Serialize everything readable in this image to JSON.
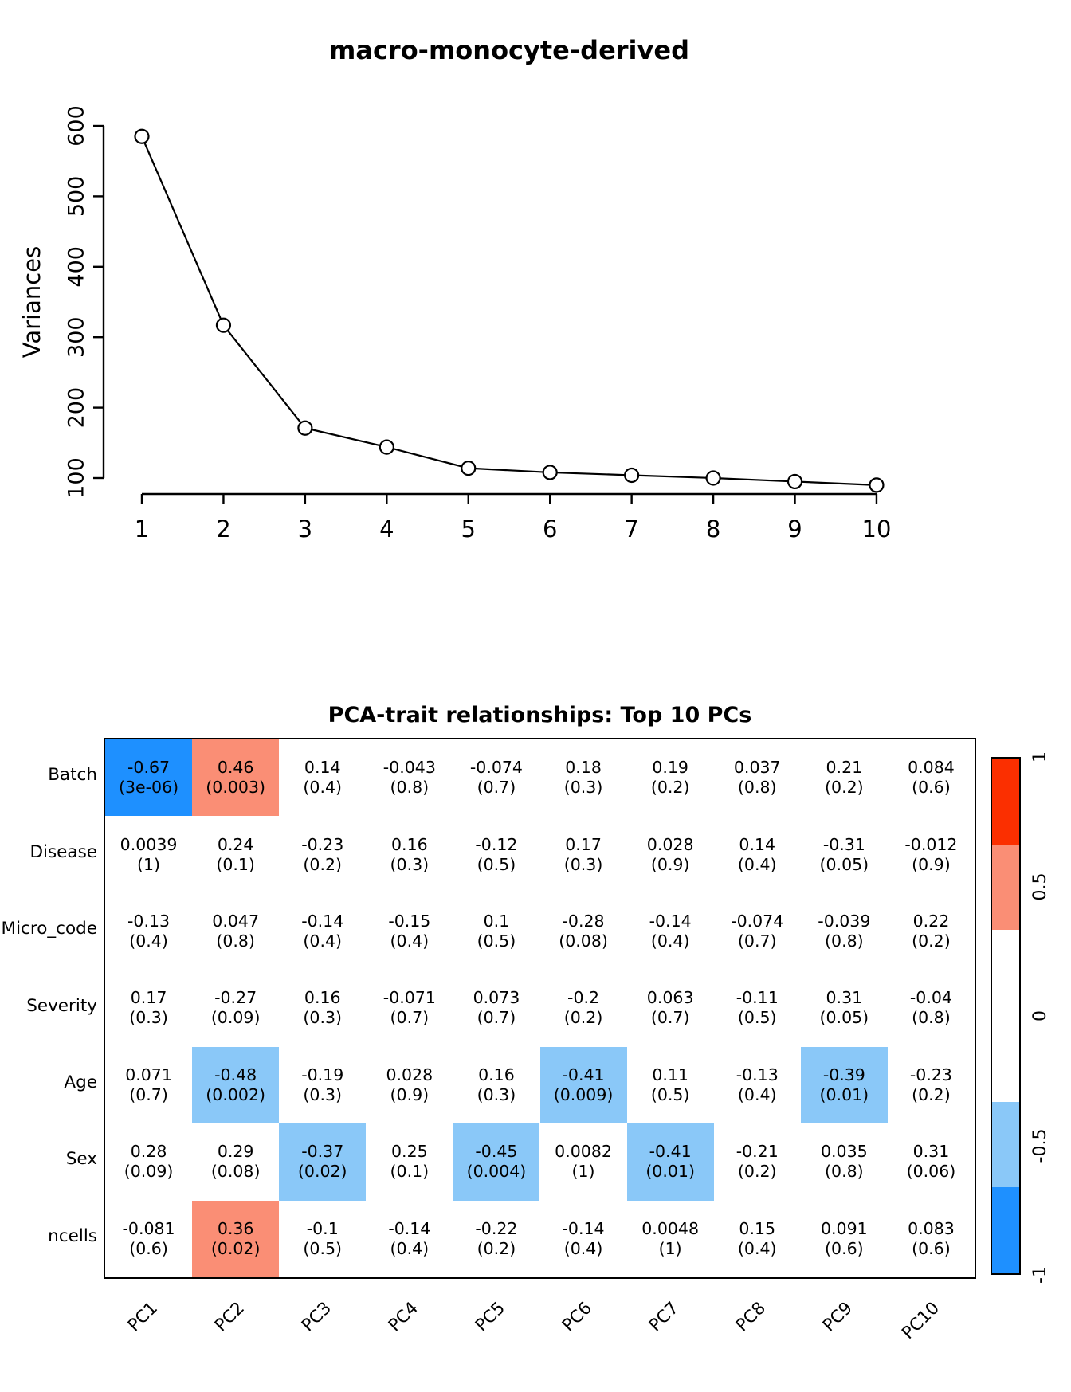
{
  "chart_data": [
    {
      "type": "line",
      "title": "macro-monocyte-derived",
      "xlabel": "",
      "ylabel": "Variances",
      "x": [
        1,
        2,
        3,
        4,
        5,
        6,
        7,
        8,
        9,
        10
      ],
      "values": [
        585,
        317,
        171,
        144,
        114,
        108,
        104,
        100,
        95,
        90
      ],
      "ylim": [
        100,
        600
      ],
      "yticks": [
        100,
        200,
        300,
        400,
        500,
        600
      ],
      "xticks": [
        "1",
        "2",
        "3",
        "4",
        "5",
        "6",
        "7",
        "8",
        "9",
        "10"
      ],
      "marker": "open-circle",
      "grid": false,
      "line_color": "#000000"
    },
    {
      "type": "heatmap",
      "title": "PCA-trait relationships: Top 10 PCs",
      "columns": [
        "PC1",
        "PC2",
        "PC3",
        "PC4",
        "PC5",
        "PC6",
        "PC7",
        "PC8",
        "PC9",
        "PC10"
      ],
      "rows": [
        {
          "label": "Batch",
          "r": [
            "-0.67",
            "0.46",
            "0.14",
            "-0.043",
            "-0.074",
            "0.18",
            "0.19",
            "0.037",
            "0.21",
            "0.084"
          ],
          "p": [
            "3e-06",
            "0.003",
            "0.4",
            "0.8",
            "0.7",
            "0.3",
            "0.2",
            "0.8",
            "0.2",
            "0.6"
          ]
        },
        {
          "label": "Disease",
          "r": [
            "0.0039",
            "0.24",
            "-0.23",
            "0.16",
            "-0.12",
            "0.17",
            "0.028",
            "0.14",
            "-0.31",
            "-0.012"
          ],
          "p": [
            "1",
            "0.1",
            "0.2",
            "0.3",
            "0.5",
            "0.3",
            "0.9",
            "0.4",
            "0.05",
            "0.9"
          ]
        },
        {
          "label": "Micro_code",
          "r": [
            "-0.13",
            "0.047",
            "-0.14",
            "-0.15",
            "0.1",
            "-0.28",
            "-0.14",
            "-0.074",
            "-0.039",
            "0.22"
          ],
          "p": [
            "0.4",
            "0.8",
            "0.4",
            "0.4",
            "0.5",
            "0.08",
            "0.4",
            "0.7",
            "0.8",
            "0.2"
          ]
        },
        {
          "label": "Severity",
          "r": [
            "0.17",
            "-0.27",
            "0.16",
            "-0.071",
            "0.073",
            "-0.2",
            "0.063",
            "-0.11",
            "0.31",
            "-0.04"
          ],
          "p": [
            "0.3",
            "0.09",
            "0.3",
            "0.7",
            "0.7",
            "0.2",
            "0.7",
            "0.5",
            "0.05",
            "0.8"
          ]
        },
        {
          "label": "Age",
          "r": [
            "0.071",
            "-0.48",
            "-0.19",
            "0.028",
            "0.16",
            "-0.41",
            "0.11",
            "-0.13",
            "-0.39",
            "-0.23"
          ],
          "p": [
            "0.7",
            "0.002",
            "0.3",
            "0.9",
            "0.3",
            "0.009",
            "0.5",
            "0.4",
            "0.01",
            "0.2"
          ]
        },
        {
          "label": "Sex",
          "r": [
            "0.28",
            "0.29",
            "-0.37",
            "0.25",
            "-0.45",
            "0.0082",
            "-0.41",
            "-0.21",
            "0.035",
            "0.31"
          ],
          "p": [
            "0.09",
            "0.08",
            "0.02",
            "0.1",
            "0.004",
            "1",
            "0.01",
            "0.2",
            "0.8",
            "0.06"
          ]
        },
        {
          "label": "ncells",
          "r": [
            "-0.081",
            "0.36",
            "-0.1",
            "-0.14",
            "-0.22",
            "-0.14",
            "0.0048",
            "0.15",
            "0.091",
            "0.083"
          ],
          "p": [
            "0.6",
            "0.02",
            "0.5",
            "0.4",
            "0.2",
            "0.4",
            "1",
            "0.4",
            "0.6",
            "0.6"
          ]
        }
      ],
      "cell_format": "r then (p) on second line",
      "colorscale": {
        "strong_pos": "#FB2F00",
        "light_pos": "#FA8E75",
        "neutral": "#FFFFFF",
        "light_neg": "#8AC8F8",
        "strong_neg": "#1E90FF",
        "thresholds": [
          0.3333,
          0.6667
        ]
      },
      "colorbar": {
        "ticks": [
          "1",
          "0.5",
          "0",
          "-0.5",
          "-1"
        ],
        "range": [
          -1,
          1
        ],
        "position": "right"
      }
    }
  ]
}
